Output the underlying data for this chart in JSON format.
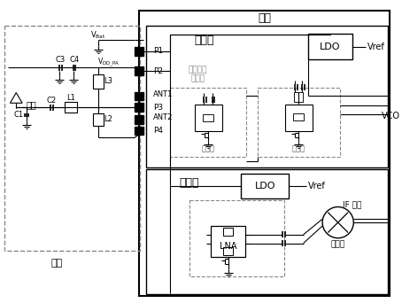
{
  "bg_color": "#ffffff",
  "lc": "#000000",
  "dc": "#888888",
  "gray": "#888888",
  "title_inner": "片内",
  "title_outer": "片外",
  "lbl_tx": "发射机",
  "lbl_rx": "接收机",
  "lbl_antenna": "天线",
  "lbl_ldo": "LDO",
  "lbl_vref": "Vref",
  "lbl_vco": "VCO",
  "lbl_lna": "LNA",
  "lbl_pa": "功放驱动\n放大器",
  "lbl_stage2": "第二级",
  "lbl_stage1": "第一级",
  "lbl_if": "IF 信号",
  "lbl_mixer": "混合器",
  "lbl_vbat": "V",
  "lbl_vdd_pa": "V",
  "lbl_p1": "P1",
  "lbl_p2": "P2",
  "lbl_p3": "P3",
  "lbl_p4": "P4",
  "lbl_ant1": "ANT1",
  "lbl_ant2": "ANT2",
  "lbl_c1": "C1",
  "lbl_c2": "C2",
  "lbl_c3": "C3",
  "lbl_c4": "C4",
  "lbl_l1": "L1",
  "lbl_l2": "L2",
  "lbl_l3": "L3"
}
